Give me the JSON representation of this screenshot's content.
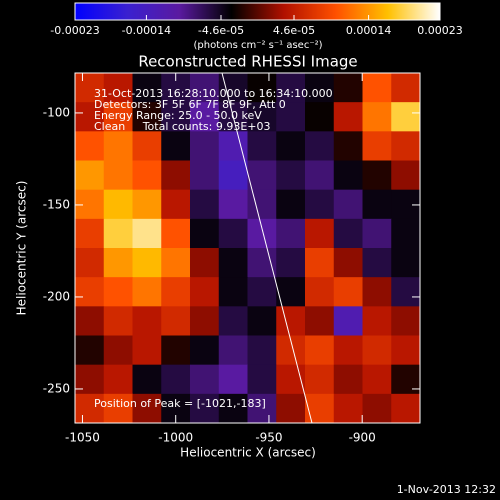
{
  "chart_data": {
    "type": "heatmap",
    "title": "Reconstructed RHESSI Image",
    "x_label": "Heliocentric X (arcsec)",
    "y_label": "Heliocentric Y (arcsec)",
    "colorbar_label": "(photons cm⁻² s⁻¹ asec⁻²)",
    "annotations": [
      "31-Oct-2013 16:28:10.000 to 16:34:10.000",
      "Detectors: 3F 5F 6F 7F 8F 9F, Att 0",
      "Energy Range: 25.0 - 50.0 keV",
      "Clean     Total counts: 9.93E+03"
    ],
    "peak_label": "Position of Peak = [-1021,-183]",
    "footer": "1-Nov-2013 12:32",
    "xlim": [
      -1054,
      -869
    ],
    "ylim": [
      -268.5,
      -78.3
    ],
    "xticks": [
      -1050,
      -1000,
      -950,
      -900
    ],
    "yticks": [
      -250,
      -200,
      -150,
      -100
    ],
    "zlim": [
      -0.00023,
      0.00023
    ],
    "zticks": [
      -0.00023,
      -0.00014,
      {
        "value": -4.6e-05,
        "label": "-4.6e-05"
      },
      {
        "value": 4.6e-05,
        "label": "4.6e-05"
      },
      0.00014,
      0.00023
    ],
    "colormap": [
      "#0000ff",
      "#3a20d0",
      "#5a1aa0",
      "#000000",
      "#b01000",
      "#ff5000",
      "#ffc000",
      "#ffffff"
    ],
    "z": [
      [
        6e-05,
        4e-05,
        -4e-05,
        -6e-05,
        -8e-05,
        -5e-05,
        -3e-05,
        -6e-05,
        -4e-05,
        -2e-05,
        0.0001,
        6e-05
      ],
      [
        4e-05,
        8e-05,
        -2e-05,
        -6e-05,
        -0.0001,
        -6e-05,
        -5e-05,
        -6e-05,
        -3e-05,
        4e-05,
        0.00012,
        0.00018
      ],
      [
        0.0001,
        0.00012,
        8e-05,
        -4e-05,
        -8e-05,
        -0.00012,
        -6e-05,
        -4e-05,
        -6e-05,
        -2e-05,
        8e-05,
        6e-05
      ],
      [
        0.00014,
        0.00012,
        0.0001,
        2e-05,
        -8e-05,
        -0.00014,
        -8e-05,
        -6e-05,
        -8e-05,
        -4e-05,
        -2e-05,
        2e-05
      ],
      [
        0.00012,
        0.00016,
        0.00014,
        4e-05,
        -6e-05,
        -0.0001,
        -8e-05,
        -4e-05,
        -6e-05,
        -8e-05,
        -4e-05,
        -4e-05
      ],
      [
        8e-05,
        0.00018,
        0.0002,
        0.0001,
        -4e-05,
        -6e-05,
        -0.0001,
        -8e-05,
        4e-05,
        -6e-05,
        -8e-05,
        -4e-05
      ],
      [
        6e-05,
        0.00014,
        0.00016,
        0.00012,
        2e-05,
        -4e-05,
        -8e-05,
        -6e-05,
        8e-05,
        2e-05,
        -6e-05,
        -4e-05
      ],
      [
        8e-05,
        0.0001,
        0.00012,
        8e-05,
        4e-05,
        -4e-05,
        -6e-05,
        -4e-05,
        6e-05,
        8e-05,
        2e-05,
        -6e-05
      ],
      [
        2e-05,
        6e-05,
        4e-05,
        6e-05,
        2e-05,
        -6e-05,
        -4e-05,
        4e-05,
        2e-05,
        -0.00012,
        4e-05,
        2e-05
      ],
      [
        -2e-05,
        2e-05,
        4e-05,
        -2e-05,
        -4e-05,
        -8e-05,
        -6e-05,
        6e-05,
        8e-05,
        4e-05,
        6e-05,
        4e-05
      ],
      [
        2e-05,
        4e-05,
        -4e-05,
        -6e-05,
        -8e-05,
        -0.0001,
        -6e-05,
        4e-05,
        6e-05,
        2e-05,
        4e-05,
        -2e-05
      ],
      [
        6e-05,
        8e-05,
        2e-05,
        -4e-05,
        -6e-05,
        -4e-05,
        -8e-05,
        2e-05,
        8e-05,
        4e-05,
        2e-05,
        4e-05
      ]
    ]
  }
}
